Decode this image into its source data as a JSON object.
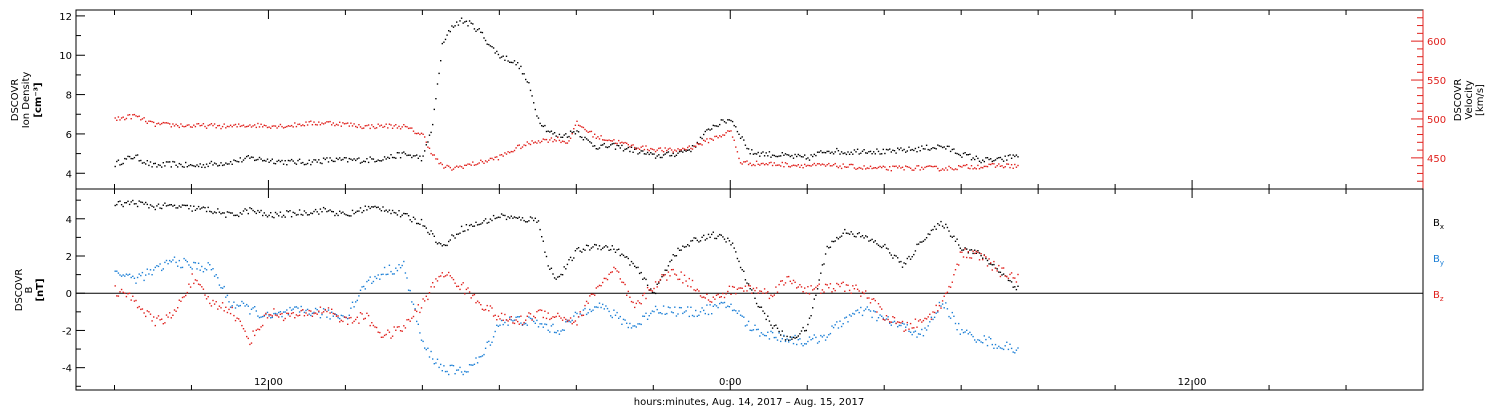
{
  "chart_data": [
    {
      "type": "scatter",
      "panel": "top",
      "ylabel_left": [
        "DSCOVR",
        "Ion Density",
        "[cm⁻³]"
      ],
      "ylabel_right": [
        "DSCOVR",
        "Velocity",
        "[km/s]"
      ],
      "ylim_left": [
        3.2,
        12.3
      ],
      "ylim_right": [
        410,
        640
      ],
      "left_ticks": [
        4,
        6,
        8,
        10,
        12
      ],
      "right_ticks": [
        450,
        500,
        550,
        600
      ],
      "colors": {
        "density": "#000000",
        "velocity": "#e0201c"
      },
      "series": [
        {
          "axis": "left",
          "color": "#000000",
          "x": [
            -16,
            -15.5,
            -15,
            -14.5,
            -14,
            -13.5,
            -13,
            -12.5,
            -12,
            -11.5,
            -11,
            -10.5,
            -10,
            -9.5,
            -9,
            -8.5,
            -8,
            -7.75,
            -7.5,
            -7.25,
            -7,
            -6.75,
            -6.5,
            -6.25,
            -6,
            -5.75,
            -5.5,
            -5.25,
            -5,
            -4.75,
            -4.5,
            -4.25,
            -4,
            -3.75,
            -3.5,
            -3,
            -2.5,
            -2,
            -1.5,
            -1,
            -0.5,
            0,
            0.5,
            1,
            1.5,
            2,
            2.5,
            3,
            3.5,
            4,
            4.5,
            5,
            5.5,
            6,
            6.5,
            7,
            7.5
          ],
          "y": [
            4.5,
            4.9,
            4.4,
            4.5,
            4.4,
            4.5,
            4.6,
            4.8,
            4.7,
            4.6,
            4.6,
            4.7,
            4.7,
            4.7,
            4.8,
            5.0,
            4.8,
            6.5,
            10.5,
            11.5,
            11.8,
            11.6,
            11.2,
            10.5,
            10.0,
            9.8,
            9.5,
            8.5,
            6.8,
            6.2,
            5.9,
            6.0,
            6.2,
            5.7,
            5.4,
            5.4,
            5.2,
            4.9,
            5.0,
            5.3,
            6.4,
            6.8,
            5.1,
            5.0,
            4.9,
            4.8,
            5.2,
            5.1,
            5.2,
            5.1,
            5.2,
            5.3,
            5.4,
            5.0,
            4.7,
            4.7,
            5.0
          ]
        },
        {
          "axis": "right",
          "color": "#e0201c",
          "x": [
            -16,
            -15.5,
            -15,
            -14.5,
            -14,
            -13.5,
            -13,
            -12.5,
            -12,
            -11.5,
            -11,
            -10.5,
            -10,
            -9.5,
            -9,
            -8.5,
            -8,
            -7.75,
            -7.5,
            -7.25,
            -7,
            -6.5,
            -6,
            -5.5,
            -5,
            -4.5,
            -4.25,
            -4,
            -3.5,
            -3,
            -2.5,
            -2,
            -1.5,
            -1,
            -0.5,
            0,
            0.25,
            0.5,
            1,
            1.5,
            2,
            2.5,
            3,
            3.5,
            4,
            4.5,
            5,
            5.5,
            6,
            6.5,
            7,
            7.5
          ],
          "y": [
            500,
            505,
            494,
            493,
            492,
            492,
            491,
            493,
            492,
            492,
            495,
            496,
            494,
            491,
            492,
            491,
            480,
            455,
            440,
            437,
            440,
            445,
            452,
            465,
            473,
            475,
            470,
            495,
            478,
            472,
            465,
            462,
            460,
            465,
            475,
            485,
            445,
            444,
            443,
            442,
            441,
            441,
            440,
            438,
            437,
            438,
            438,
            437,
            439,
            440,
            441,
            440
          ]
        }
      ]
    },
    {
      "type": "scatter",
      "panel": "bottom",
      "ylabel": [
        "DSCOVR",
        "B",
        "[nT]"
      ],
      "ylim": [
        -5.2,
        5.6
      ],
      "yticks": [
        -4,
        -2,
        0,
        2,
        4
      ],
      "zero_line": true,
      "legend": [
        "Bₓ",
        "Bᵧ",
        "B_z"
      ],
      "legend_text": {
        "bx": "B",
        "bx_sub": "x",
        "by": "B",
        "by_sub": "y",
        "bz": "B",
        "bz_sub": "z"
      },
      "colors": {
        "bx": "#000000",
        "by": "#1c7fd6",
        "bz": "#e0201c"
      },
      "series": [
        {
          "name": "Bx",
          "color": "#000000",
          "x": [
            -16,
            -15.5,
            -15,
            -14.5,
            -14,
            -13.5,
            -13,
            -12.5,
            -12,
            -11.5,
            -11,
            -10.5,
            -10,
            -9.5,
            -9,
            -8.5,
            -8,
            -7.5,
            -7,
            -6.5,
            -6,
            -5.5,
            -5,
            -4.75,
            -4.5,
            -4,
            -3.5,
            -3,
            -2.5,
            -2,
            -1.5,
            -1,
            -0.5,
            0,
            0.5,
            1,
            1.5,
            2,
            2.5,
            3,
            3.5,
            4,
            4.5,
            5,
            5.5,
            6,
            6.5,
            7,
            7.5
          ],
          "y": [
            4.8,
            4.9,
            4.7,
            4.7,
            4.6,
            4.5,
            4.2,
            4.5,
            4.2,
            4.3,
            4.4,
            4.5,
            4.2,
            4.6,
            4.6,
            4.2,
            3.8,
            2.5,
            3.5,
            3.8,
            4.2,
            4.0,
            4.0,
            1.5,
            0.8,
            2.3,
            2.6,
            2.4,
            1.5,
            0.0,
            2.1,
            2.8,
            3.2,
            2.8,
            0.2,
            -1.5,
            -2.5,
            -1.8,
            2.5,
            3.4,
            3.0,
            2.5,
            1.5,
            3.0,
            3.8,
            2.5,
            2.1,
            1.2,
            0.2
          ]
        },
        {
          "name": "By",
          "color": "#1c7fd6",
          "x": [
            -16,
            -15.5,
            -15,
            -14.5,
            -14,
            -13.5,
            -13,
            -12.5,
            -12,
            -11.5,
            -11,
            -10.5,
            -10,
            -9.5,
            -9,
            -8.5,
            -8,
            -7.5,
            -7,
            -6.5,
            -6,
            -5.5,
            -5,
            -4.5,
            -4,
            -3.5,
            -3,
            -2.5,
            -2,
            -1.5,
            -1,
            -0.5,
            0,
            0.5,
            1,
            1.5,
            2,
            2.5,
            3,
            3.5,
            4,
            4.5,
            5,
            5.5,
            6,
            6.5,
            7,
            7.5
          ],
          "y": [
            1.2,
            0.8,
            1.2,
            1.8,
            1.5,
            1.4,
            -0.5,
            -0.8,
            -1.3,
            -1.0,
            -0.9,
            -1.1,
            -1.2,
            0.5,
            1.2,
            1.5,
            -2.8,
            -4.0,
            -4.2,
            -3.5,
            -1.5,
            -1.4,
            -1.6,
            -2.0,
            -1.2,
            -0.5,
            -1.2,
            -1.8,
            -0.8,
            -0.9,
            -1.0,
            -0.8,
            -0.6,
            -1.8,
            -2.2,
            -2.4,
            -2.6,
            -2.2,
            -1.3,
            -0.9,
            -1.4,
            -1.8,
            -2.2,
            -0.4,
            -2.1,
            -2.4,
            -2.8,
            -3.0
          ]
        },
        {
          "name": "Bz",
          "color": "#e0201c",
          "x": [
            -16,
            -15.5,
            -15,
            -14.5,
            -14,
            -13.5,
            -13,
            -12.5,
            -12,
            -11.5,
            -11,
            -10.5,
            -10,
            -9.5,
            -9,
            -8.5,
            -8,
            -7.5,
            -7,
            -6.5,
            -6,
            -5.5,
            -5,
            -4.5,
            -4,
            -3.5,
            -3,
            -2.5,
            -2,
            -1.5,
            -1,
            -0.5,
            0,
            0.5,
            1,
            1.5,
            2,
            2.5,
            3,
            3.5,
            4,
            4.5,
            5,
            5.5,
            6,
            6.5,
            7,
            7.5
          ],
          "y": [
            0.2,
            -0.3,
            -1.5,
            -1.2,
            0.8,
            -0.5,
            -0.8,
            -2.5,
            -1.0,
            -1.2,
            -1.1,
            -0.8,
            -1.5,
            -1.2,
            -2.3,
            -1.8,
            -0.5,
            1.2,
            0.4,
            -0.5,
            -1.3,
            -1.5,
            -1.0,
            -1.2,
            -1.5,
            0.3,
            1.3,
            -0.8,
            0.5,
            1.2,
            0.5,
            -0.4,
            0.2,
            0.3,
            0.0,
            0.8,
            0.2,
            0.3,
            0.4,
            0.0,
            -1.2,
            -1.8,
            -1.5,
            -0.5,
            2.2,
            2.0,
            1.2,
            0.8
          ]
        }
      ]
    }
  ],
  "x_axis": {
    "range_hours": [
      -17,
      18
    ],
    "major_ticks": [
      -12,
      0,
      12
    ],
    "tick_labels": [
      "12:00",
      "0:00",
      "12:00"
    ],
    "minor_step_hours": 2,
    "label": "hours:minutes, Aug. 14, 2017 – Aug. 15, 2017"
  }
}
